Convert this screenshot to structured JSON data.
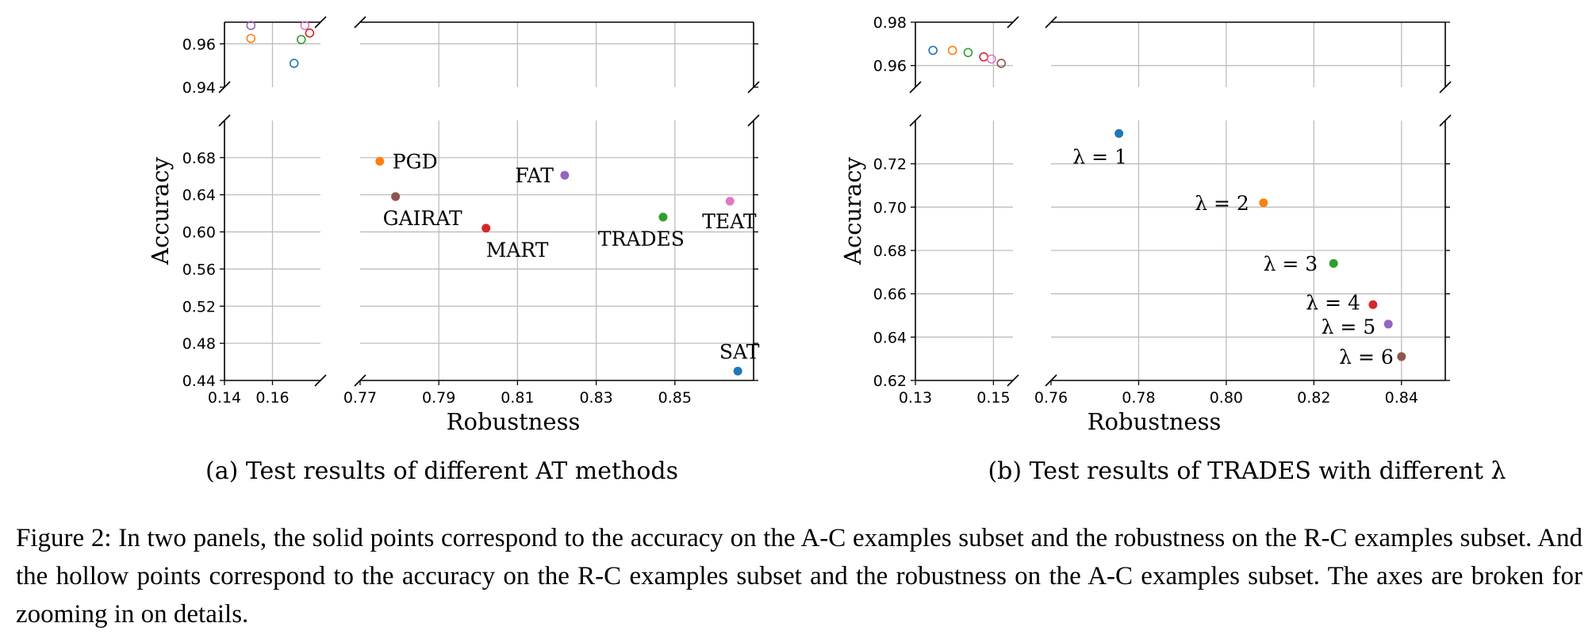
{
  "chart_data": [
    {
      "type": "scatter",
      "xlabel": "Robustness",
      "ylabel": "Accuracy",
      "subcaption": "(a) Test results of different AT methods",
      "broken_axes": true,
      "x_low": {
        "range": [
          0.14,
          0.18
        ],
        "ticks": [
          0.14,
          0.16
        ],
        "tick_labels": [
          "0.14",
          "0.16"
        ]
      },
      "x_high": {
        "range": [
          0.77,
          0.87
        ],
        "ticks": [
          0.77,
          0.79,
          0.81,
          0.83,
          0.85
        ],
        "tick_labels": [
          "0.77",
          "0.79",
          "0.81",
          "0.83",
          "0.85"
        ]
      },
      "y_low": {
        "range": [
          0.44,
          0.72
        ],
        "ticks": [
          0.44,
          0.48,
          0.52,
          0.56,
          0.6,
          0.64,
          0.68
        ],
        "tick_labels": [
          "0.44",
          "0.48",
          "0.52",
          "0.56",
          "0.60",
          "0.64",
          "0.68"
        ]
      },
      "y_high": {
        "range": [
          0.94,
          0.97
        ],
        "ticks": [
          0.94,
          0.96
        ],
        "tick_labels": [
          "0.94",
          "0.96"
        ]
      },
      "solid_points": [
        {
          "label": "PGD",
          "x": 0.775,
          "y": 0.676,
          "color": "#ff7f0e"
        },
        {
          "label": "GAIRAT",
          "x": 0.779,
          "y": 0.638,
          "color": "#8c564b"
        },
        {
          "label": "MART",
          "x": 0.802,
          "y": 0.604,
          "color": "#d62728"
        },
        {
          "label": "FAT",
          "x": 0.822,
          "y": 0.661,
          "color": "#9467bd"
        },
        {
          "label": "TRADES",
          "x": 0.847,
          "y": 0.616,
          "color": "#2ca02c"
        },
        {
          "label": "TEAT",
          "x": 0.864,
          "y": 0.633,
          "color": "#e377c2"
        },
        {
          "label": "SAT",
          "x": 0.866,
          "y": 0.45,
          "color": "#1f77b4"
        }
      ],
      "hollow_points": [
        {
          "x": 0.151,
          "y": 0.9685,
          "color": "#9467bd"
        },
        {
          "x": 0.151,
          "y": 0.9625,
          "color": "#ff7f0e"
        },
        {
          "x": 0.169,
          "y": 0.951,
          "color": "#1f77b4"
        },
        {
          "x": 0.172,
          "y": 0.962,
          "color": "#2ca02c"
        },
        {
          "x": 0.1735,
          "y": 0.9685,
          "color": "#e377c2"
        },
        {
          "x": 0.1755,
          "y": 0.965,
          "color": "#d62728"
        }
      ]
    },
    {
      "type": "scatter",
      "xlabel": "Robustness",
      "ylabel": "Accuracy",
      "subcaption": "(b) Test results of TRADES with different λ",
      "broken_axes": true,
      "x_low": {
        "range": [
          0.13,
          0.155
        ],
        "ticks": [
          0.13,
          0.15
        ],
        "tick_labels": [
          "0.13",
          "0.15"
        ]
      },
      "x_high": {
        "range": [
          0.76,
          0.85
        ],
        "ticks": [
          0.76,
          0.78,
          0.8,
          0.82,
          0.84
        ],
        "tick_labels": [
          "0.76",
          "0.78",
          "0.80",
          "0.82",
          "0.84"
        ]
      },
      "y_low": {
        "range": [
          0.62,
          0.74
        ],
        "ticks": [
          0.62,
          0.64,
          0.66,
          0.68,
          0.7,
          0.72
        ],
        "tick_labels": [
          "0.62",
          "0.64",
          "0.66",
          "0.68",
          "0.70",
          "0.72"
        ]
      },
      "y_high": {
        "range": [
          0.95,
          0.98
        ],
        "ticks": [
          0.96,
          0.98
        ],
        "tick_labels": [
          "0.96",
          "0.98"
        ]
      },
      "solid_points": [
        {
          "label": "λ = 1",
          "x": 0.7755,
          "y": 0.734,
          "color": "#1f77b4"
        },
        {
          "label": "λ = 2",
          "x": 0.8085,
          "y": 0.702,
          "color": "#ff7f0e"
        },
        {
          "label": "λ = 3",
          "x": 0.8245,
          "y": 0.674,
          "color": "#2ca02c"
        },
        {
          "label": "λ = 4",
          "x": 0.8335,
          "y": 0.655,
          "color": "#d62728"
        },
        {
          "label": "λ = 5",
          "x": 0.837,
          "y": 0.646,
          "color": "#9467bd"
        },
        {
          "label": "λ = 6",
          "x": 0.84,
          "y": 0.631,
          "color": "#8c564b"
        }
      ],
      "hollow_points": [
        {
          "x": 0.1345,
          "y": 0.967,
          "color": "#1f77b4"
        },
        {
          "x": 0.1395,
          "y": 0.967,
          "color": "#ff7f0e"
        },
        {
          "x": 0.1435,
          "y": 0.966,
          "color": "#2ca02c"
        },
        {
          "x": 0.1475,
          "y": 0.964,
          "color": "#d62728"
        },
        {
          "x": 0.1495,
          "y": 0.963,
          "color": "#e377c2"
        },
        {
          "x": 0.152,
          "y": 0.961,
          "color": "#8c564b"
        }
      ]
    }
  ],
  "caption": "Figure 2: In two panels, the solid points correspond to the accuracy on the A-C examples subset and the robustness on the R-C examples subset. And the hollow points correspond to the accuracy on the R-C examples subset and the robustness on the A-C examples subset. The axes are broken for zooming in on details."
}
